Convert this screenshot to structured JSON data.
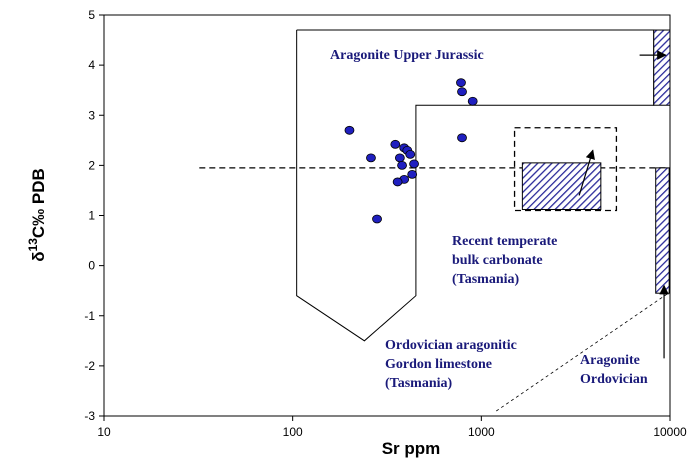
{
  "chart_data": {
    "type": "scatter",
    "xscale": "log",
    "xlim": [
      10,
      10000
    ],
    "ylim": [
      -3,
      5
    ],
    "xticks": [
      10,
      100,
      1000,
      10000
    ],
    "xtick_labels": [
      "10",
      "100",
      "1000",
      "10000"
    ],
    "yticks": [
      -3,
      -2,
      -1,
      0,
      1,
      2,
      3,
      4,
      5
    ],
    "ytick_labels": [
      "-3",
      "-2",
      "-1",
      "0",
      "1",
      "2",
      "3",
      "4",
      "5"
    ],
    "xlabel": "Sr ppm",
    "ylabel_parts": [
      "δ",
      "13",
      "C‰ PDB"
    ],
    "point_color": "#1f1fbf",
    "hatch_color": "#2a2a9a",
    "annotation_color": "#1a1a7a",
    "points": [
      {
        "x": 200,
        "y": 2.7
      },
      {
        "x": 260,
        "y": 2.15
      },
      {
        "x": 350,
        "y": 2.42
      },
      {
        "x": 370,
        "y": 2.15
      },
      {
        "x": 390,
        "y": 2.35
      },
      {
        "x": 405,
        "y": 2.3
      },
      {
        "x": 420,
        "y": 2.22
      },
      {
        "x": 380,
        "y": 2.0
      },
      {
        "x": 440,
        "y": 2.03
      },
      {
        "x": 430,
        "y": 1.82
      },
      {
        "x": 390,
        "y": 1.72
      },
      {
        "x": 360,
        "y": 1.67
      },
      {
        "x": 280,
        "y": 0.93
      },
      {
        "x": 780,
        "y": 3.65
      },
      {
        "x": 790,
        "y": 3.47
      },
      {
        "x": 900,
        "y": 3.28
      },
      {
        "x": 790,
        "y": 2.55
      }
    ],
    "dashed_line": {
      "x": [
        32,
        10000
      ],
      "y": 1.95
    },
    "envelope": [
      [
        105,
        4.7
      ],
      [
        8200,
        4.7
      ],
      [
        8200,
        3.2
      ],
      [
        450,
        3.2
      ],
      [
        450,
        -0.6
      ],
      [
        240,
        -1.5
      ],
      [
        105,
        -0.6
      ],
      [
        105,
        4.7
      ]
    ],
    "bars": [
      {
        "x": [
          8200,
          10000
        ],
        "y": [
          3.2,
          4.7
        ]
      },
      {
        "x": [
          1650,
          4300
        ],
        "y": [
          1.12,
          2.05
        ]
      },
      {
        "x": [
          8400,
          9900
        ],
        "y": [
          -0.55,
          1.95
        ]
      }
    ],
    "dashed_box": {
      "x": [
        1500,
        5200
      ],
      "y": [
        1.1,
        2.75
      ]
    },
    "thin_dashed": [
      [
        1200,
        -2.9
      ],
      [
        9800,
        -0.55
      ]
    ],
    "arrows": [
      {
        "from": [
          6900,
          4.2
        ],
        "to": [
          9500,
          4.2
        ]
      },
      {
        "from": [
          3300,
          1.4
        ],
        "to": [
          3900,
          2.3
        ]
      },
      {
        "from": [
          9300,
          -1.85
        ],
        "to": [
          9300,
          -0.4
        ]
      }
    ],
    "annotations": [
      {
        "lines": [
          "Aragonite Upper Jurassic"
        ]
      },
      {
        "lines": [
          "Recent temperate",
          "bulk carbonate",
          "(Tasmania)"
        ]
      },
      {
        "lines": [
          "Ordovician aragonitic",
          "Gordon limestone",
          "(Tasmania)"
        ]
      },
      {
        "lines": [
          "Aragonite",
          "Ordovician"
        ]
      }
    ]
  }
}
